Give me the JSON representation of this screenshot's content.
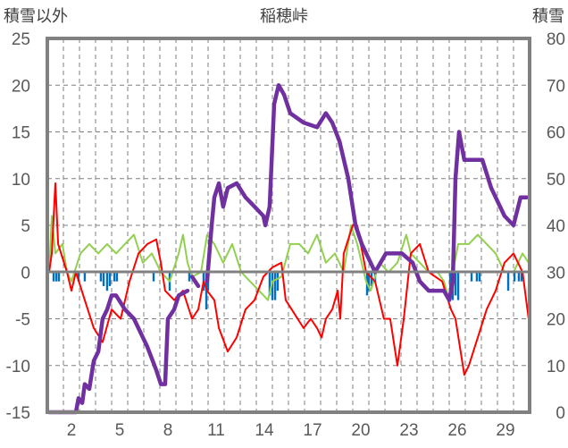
{
  "chart_data": {
    "type": "line",
    "title": "稲穂峠",
    "ylabel_left": "積雪以外",
    "ylabel_right": "積雪",
    "ylim_left": [
      -15,
      25
    ],
    "yticks_left": [
      -15,
      -10,
      -5,
      0,
      5,
      10,
      15,
      20,
      25
    ],
    "ylim_right": [
      0,
      80
    ],
    "yticks_right": [
      0,
      10,
      20,
      30,
      40,
      50,
      60,
      70,
      80
    ],
    "xlim_days": [
      0,
      30
    ],
    "xtick_labels": [
      "2",
      "5",
      "8",
      "11",
      "14",
      "17",
      "20",
      "23",
      "26",
      "29"
    ],
    "grid": true,
    "colors": {
      "snow": "#7030a0",
      "temp": "#ff0000",
      "wind": "#92d050",
      "precip": "#0070c0",
      "axis": "#808080"
    },
    "series": [
      {
        "name": "snow_depth",
        "axis": "right",
        "points": [
          [
            0.11,
            0
          ],
          [
            1.78,
            0
          ],
          [
            1.94,
            3
          ],
          [
            2.17,
            2
          ],
          [
            2.33,
            6
          ],
          [
            2.61,
            5
          ],
          [
            2.89,
            11
          ],
          [
            3.17,
            13
          ],
          [
            3.44,
            20
          ],
          [
            3.72,
            22
          ],
          [
            4.0,
            25
          ],
          [
            4.28,
            25
          ],
          [
            4.83,
            22
          ],
          [
            5.39,
            20
          ],
          [
            6.22,
            14
          ],
          [
            6.78,
            9
          ],
          [
            7.06,
            6
          ],
          [
            7.33,
            6
          ],
          [
            7.5,
            20
          ],
          [
            7.89,
            22
          ],
          [
            8.17,
            25
          ],
          [
            8.72,
            26
          ],
          null,
          [
            9.0,
            29
          ],
          [
            9.39,
            27
          ],
          null,
          [
            9.94,
            28
          ],
          [
            10.22,
            40
          ],
          [
            10.39,
            46
          ],
          [
            10.67,
            49
          ],
          [
            10.94,
            44
          ],
          [
            11.22,
            48
          ],
          [
            11.78,
            49
          ],
          [
            12.33,
            46
          ],
          [
            12.89,
            44
          ],
          [
            13.44,
            42
          ],
          [
            13.56,
            40
          ],
          [
            13.83,
            44
          ],
          [
            14.11,
            66
          ],
          [
            14.39,
            70
          ],
          [
            14.72,
            68
          ],
          [
            15.11,
            64
          ],
          [
            15.94,
            62
          ],
          [
            16.78,
            61
          ],
          [
            17.33,
            64
          ],
          [
            17.72,
            62
          ],
          [
            18.17,
            58
          ],
          [
            18.72,
            50
          ],
          [
            19.17,
            40
          ],
          [
            19.56,
            36
          ],
          [
            20.11,
            32
          ],
          [
            20.39,
            30
          ],
          [
            21.06,
            34
          ],
          [
            22.06,
            34
          ],
          [
            22.72,
            32
          ],
          [
            23.17,
            28
          ],
          [
            23.72,
            26
          ],
          [
            24.67,
            26
          ],
          [
            25.0,
            24
          ],
          [
            25.22,
            28
          ],
          [
            25.39,
            50
          ],
          [
            25.61,
            60
          ],
          [
            25.94,
            54
          ],
          [
            27.06,
            54
          ],
          [
            27.61,
            48
          ],
          [
            28.44,
            42
          ],
          [
            29.0,
            40
          ],
          [
            29.44,
            46
          ],
          [
            29.83,
            46
          ]
        ]
      },
      {
        "name": "temperature",
        "axis": "left",
        "points": [
          [
            0.11,
            0
          ],
          [
            0.28,
            2
          ],
          [
            0.5,
            9.5
          ],
          [
            0.67,
            3
          ],
          [
            1.22,
            0
          ],
          [
            1.5,
            -2
          ],
          [
            1.78,
            0
          ],
          [
            2.33,
            -3
          ],
          [
            2.89,
            -6
          ],
          [
            3.44,
            -7.5
          ],
          [
            4.0,
            -4
          ],
          [
            4.56,
            -5
          ],
          [
            5.11,
            -1
          ],
          [
            5.67,
            2
          ],
          [
            6.22,
            3
          ],
          [
            6.78,
            3.5
          ],
          [
            7.06,
            1
          ],
          [
            7.33,
            -2
          ],
          [
            7.89,
            -3
          ],
          [
            8.44,
            -2
          ],
          [
            9.0,
            -5
          ],
          [
            9.39,
            -4
          ],
          [
            9.72,
            -1
          ],
          [
            9.94,
            -2
          ],
          [
            10.39,
            -3
          ],
          [
            10.67,
            -6
          ],
          [
            11.22,
            -8.5
          ],
          [
            11.78,
            -7
          ],
          [
            12.33,
            -4
          ],
          [
            12.89,
            -3
          ],
          [
            13.44,
            -0.5
          ],
          [
            14.0,
            0.5
          ],
          [
            14.56,
            1
          ],
          [
            14.83,
            -3
          ],
          [
            15.39,
            -4.5
          ],
          [
            15.94,
            -6
          ],
          [
            16.39,
            -5
          ],
          [
            16.78,
            -6
          ],
          [
            17.06,
            -7
          ],
          [
            17.33,
            -5
          ],
          [
            17.72,
            -4
          ],
          [
            18.06,
            -2
          ],
          [
            18.22,
            -5
          ],
          [
            18.44,
            2
          ],
          [
            19.0,
            5
          ],
          [
            19.28,
            5
          ],
          [
            19.83,
            0
          ],
          [
            20.39,
            -1
          ],
          [
            20.94,
            -5
          ],
          [
            21.33,
            -5
          ],
          [
            21.78,
            -10
          ],
          [
            22.17,
            -5
          ],
          [
            22.61,
            2
          ],
          [
            23.17,
            3
          ],
          [
            23.72,
            0
          ],
          [
            24.56,
            -1
          ],
          [
            25.11,
            -4
          ],
          [
            25.39,
            -5
          ],
          [
            25.94,
            -11
          ],
          [
            26.22,
            -10
          ],
          [
            26.78,
            -7
          ],
          [
            27.33,
            -4
          ],
          [
            27.89,
            -2
          ],
          [
            28.44,
            1
          ],
          [
            29.0,
            2
          ],
          [
            29.56,
            0
          ],
          [
            29.94,
            -5
          ]
        ]
      },
      {
        "name": "wind",
        "axis": "left",
        "points": [
          [
            0.11,
            0
          ],
          [
            0.28,
            6
          ],
          [
            0.5,
            2
          ],
          [
            0.94,
            3
          ],
          [
            1.22,
            0
          ],
          [
            1.5,
            -1
          ],
          [
            2.06,
            2
          ],
          [
            2.61,
            3
          ],
          [
            3.17,
            2
          ],
          [
            3.72,
            3
          ],
          [
            4.28,
            2
          ],
          [
            4.83,
            3
          ],
          [
            5.39,
            4
          ],
          [
            5.94,
            1
          ],
          [
            6.5,
            2
          ],
          [
            7.06,
            0
          ],
          [
            7.61,
            -1
          ],
          [
            8.17,
            2
          ],
          [
            8.44,
            4
          ],
          [
            8.72,
            1
          ],
          [
            9.0,
            -0.5
          ],
          [
            9.56,
            0
          ],
          [
            9.94,
            4
          ],
          [
            10.39,
            3
          ],
          [
            10.94,
            1
          ],
          [
            11.5,
            3
          ],
          [
            12.06,
            0
          ],
          [
            12.61,
            -1
          ],
          [
            13.17,
            -2
          ],
          [
            13.72,
            -3
          ],
          [
            14.0,
            -1
          ],
          [
            14.56,
            -0.5
          ],
          [
            15.11,
            3
          ],
          [
            15.67,
            3
          ],
          [
            16.22,
            2
          ],
          [
            16.78,
            4
          ],
          [
            17.33,
            1
          ],
          [
            17.89,
            2
          ],
          [
            18.44,
            0
          ],
          [
            18.89,
            5
          ],
          [
            19.28,
            3
          ],
          [
            19.83,
            -1
          ],
          [
            20.11,
            -2
          ],
          [
            20.67,
            1
          ],
          [
            21.22,
            0
          ],
          [
            21.78,
            1
          ],
          [
            22.33,
            4
          ],
          [
            22.61,
            2
          ],
          [
            23.17,
            1
          ],
          [
            23.72,
            0
          ],
          [
            24.28,
            0
          ],
          [
            24.67,
            -1
          ],
          [
            25.0,
            -3
          ],
          [
            25.22,
            0
          ],
          [
            25.56,
            3
          ],
          [
            26.22,
            3
          ],
          [
            26.78,
            4
          ],
          [
            27.33,
            3
          ],
          [
            27.89,
            2
          ],
          [
            28.44,
            0
          ],
          [
            29.0,
            0
          ],
          [
            29.56,
            2
          ],
          [
            29.94,
            1
          ]
        ]
      },
      {
        "name": "precipitation",
        "axis": "left",
        "bars": [
          [
            0.39,
            -1
          ],
          [
            0.56,
            -1
          ],
          [
            0.72,
            -1
          ],
          [
            1.94,
            -1
          ],
          [
            2.33,
            -1
          ],
          [
            3.33,
            -1
          ],
          [
            3.5,
            -1.5
          ],
          [
            3.72,
            -2
          ],
          [
            3.89,
            -1.5
          ],
          [
            4.17,
            -1
          ],
          [
            4.33,
            -1
          ],
          [
            6.61,
            -1
          ],
          [
            7.61,
            -2
          ],
          [
            8.83,
            -1
          ],
          [
            9.72,
            -2
          ],
          [
            9.89,
            -4
          ],
          [
            10.0,
            -2
          ],
          [
            13.83,
            -2.5
          ],
          [
            14.0,
            -3
          ],
          [
            14.17,
            -3
          ],
          [
            14.33,
            -2
          ],
          [
            19.89,
            -2.5
          ],
          [
            20.0,
            -2
          ],
          [
            20.17,
            -1.5
          ],
          [
            20.39,
            -1
          ],
          [
            25.06,
            -2
          ],
          [
            25.22,
            -3
          ],
          [
            25.39,
            -2.5
          ],
          [
            25.56,
            -3
          ],
          [
            26.39,
            -1
          ],
          [
            26.72,
            -1
          ],
          [
            26.89,
            -1
          ],
          [
            28.67,
            -2
          ],
          [
            29.06,
            -1
          ],
          [
            29.33,
            -1
          ],
          [
            29.5,
            -1
          ]
        ]
      }
    ]
  }
}
